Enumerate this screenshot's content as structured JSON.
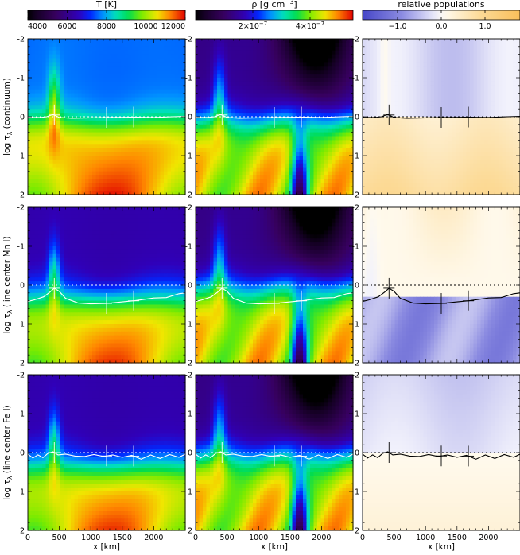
{
  "chart_data": {
    "type": "heatmap",
    "x_axis": {
      "label": "x [km]",
      "range": [
        0,
        2500
      ],
      "ticks": [
        0,
        500,
        1000,
        1500,
        2000
      ]
    },
    "y_axis": {
      "range": [
        -2,
        2
      ],
      "inverted": true,
      "ticks": [
        -2,
        -1,
        0,
        1,
        2
      ],
      "tick_labels": [
        "-2",
        "-1",
        "0",
        "1",
        "2"
      ]
    },
    "colorbars": [
      {
        "title": "T [K]",
        "range": [
          4000,
          12000
        ],
        "ticks": [
          4000,
          6000,
          8000,
          10000,
          12000
        ],
        "tick_labels": [
          "4000",
          "6000",
          "8000",
          "10000",
          "12000"
        ],
        "colormap": "rainbow"
      },
      {
        "title_pre": "ρ [g cm",
        "title_sup": "−3",
        "title_post": "]",
        "range": [
          0,
          5.5e-07
        ],
        "ticks": [
          2e-07,
          4e-07
        ],
        "tick_labels": [
          {
            "base": "2×10",
            "exp": "−7"
          },
          {
            "base": "4×10",
            "exp": "−7"
          }
        ],
        "colormap": "rainbow"
      },
      {
        "title": "relative populations",
        "range": [
          -1.8,
          1.8
        ],
        "ticks": [
          -1.0,
          0.0,
          1.0
        ],
        "tick_labels": [
          "−1.0",
          "0.0",
          "1.0"
        ],
        "colormap": "blue-white-orange"
      }
    ],
    "rows": [
      {
        "ylabel_pre": "log τ",
        "ylabel_sub": "λ",
        "ylabel_post": " (continuum)",
        "tau1_curve": {
          "x": [
            0,
            200,
            300,
            400,
            500,
            700,
            1000,
            1300,
            1700,
            2000,
            2300,
            2500
          ],
          "y": [
            0.02,
            0.02,
            0.0,
            -0.06,
            0.02,
            0.04,
            0.03,
            0.02,
            0.01,
            0.02,
            0.0,
            -0.01
          ]
        }
      },
      {
        "ylabel_pre": "log τ",
        "ylabel_sub": "λ",
        "ylabel_post": " (line center Mn I)",
        "tau1_curve": {
          "x": [
            0,
            100,
            250,
            350,
            420,
            500,
            600,
            800,
            1000,
            1250,
            1500,
            1700,
            2000,
            2200,
            2400,
            2500
          ],
          "y": [
            0.42,
            0.38,
            0.3,
            0.18,
            0.08,
            0.16,
            0.34,
            0.46,
            0.48,
            0.47,
            0.43,
            0.4,
            0.33,
            0.32,
            0.22,
            0.2
          ]
        }
      },
      {
        "ylabel_pre": "log τ",
        "ylabel_sub": "λ",
        "ylabel_post": " (line center Fe I)",
        "tau1_curve": {
          "x": [
            0,
            80,
            160,
            240,
            320,
            400,
            480,
            600,
            750,
            900,
            1050,
            1200,
            1350,
            1500,
            1650,
            1800,
            1950,
            2100,
            2250,
            2400,
            2500
          ],
          "y": [
            0.04,
            0.14,
            0.06,
            0.13,
            0.02,
            -0.02,
            0.06,
            0.04,
            0.09,
            0.1,
            0.05,
            0.1,
            0.06,
            0.12,
            0.07,
            0.17,
            0.06,
            0.15,
            0.05,
            0.12,
            0.04
          ]
        }
      }
    ],
    "reference_line": {
      "y": 0,
      "style": "dotted"
    },
    "markers_x_km": [
      420,
      1250,
      1680
    ]
  }
}
